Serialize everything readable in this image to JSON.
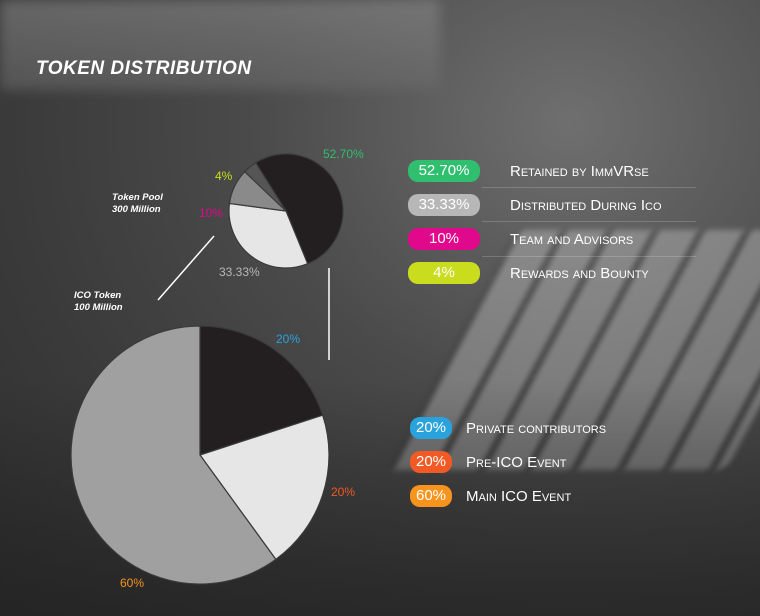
{
  "title": "TOKEN DISTRIBUTION",
  "colors": {
    "retained": "#2fbf6f",
    "distributed": "#b7b7b7",
    "team": "#e0088b",
    "rewards": "#c9dc1e",
    "private": "#2aa3dc",
    "pre_ico": "#f15a24",
    "main_ico": "#f7941d"
  },
  "chart_data": [
    {
      "type": "pie",
      "title": "Token Pool",
      "subtitle": "300 Million",
      "slices": [
        {
          "label": "Retained by ImmVRse",
          "value": 52.7,
          "display": "52.70%",
          "fill": "#231f20",
          "text_color": "#2fbf6f"
        },
        {
          "label": "Distributed During Ico",
          "value": 33.33,
          "display": "33.33%",
          "fill": "#e6e6e6",
          "text_color": "#b7b7b7"
        },
        {
          "label": "Team and Advisors",
          "value": 10,
          "display": "10%",
          "fill": "#8a8a8a",
          "text_color": "#e0088b"
        },
        {
          "label": "Rewards and Bounty",
          "value": 4,
          "display": "4%",
          "fill": "#555555",
          "text_color": "#c9dc1e"
        }
      ]
    },
    {
      "type": "pie",
      "title": "ICO Token",
      "subtitle": "100 Million",
      "slices": [
        {
          "label": "Private contributors",
          "value": 20,
          "display": "20%",
          "fill": "#231f20",
          "text_color": "#2aa3dc"
        },
        {
          "label": "Pre-ICO Event",
          "value": 20,
          "display": "20%",
          "fill": "#e6e6e6",
          "text_color": "#f15a24"
        },
        {
          "label": "Main ICO Event",
          "value": 60,
          "display": "60%",
          "fill": "#a0a0a0",
          "text_color": "#f7941d"
        }
      ]
    }
  ],
  "legend_pool": [
    {
      "badge": "52.70%",
      "label": "Retained by ImmVRse",
      "color": "#2fbf6f"
    },
    {
      "badge": "33.33%",
      "label": "Distributed During Ico",
      "color": "#b7b7b7"
    },
    {
      "badge": "10%",
      "label": "Team and Advisors",
      "color": "#e0088b"
    },
    {
      "badge": "4%",
      "label": "Rewards and Bounty",
      "color": "#c9dc1e"
    }
  ],
  "legend_ico": [
    {
      "badge": "20%",
      "label": "Private contributors",
      "color": "#2aa3dc"
    },
    {
      "badge": "20%",
      "label": "Pre-ICO Event",
      "color": "#f15a24"
    },
    {
      "badge": "60%",
      "label": "Main ICO Event",
      "color": "#f7941d"
    }
  ]
}
